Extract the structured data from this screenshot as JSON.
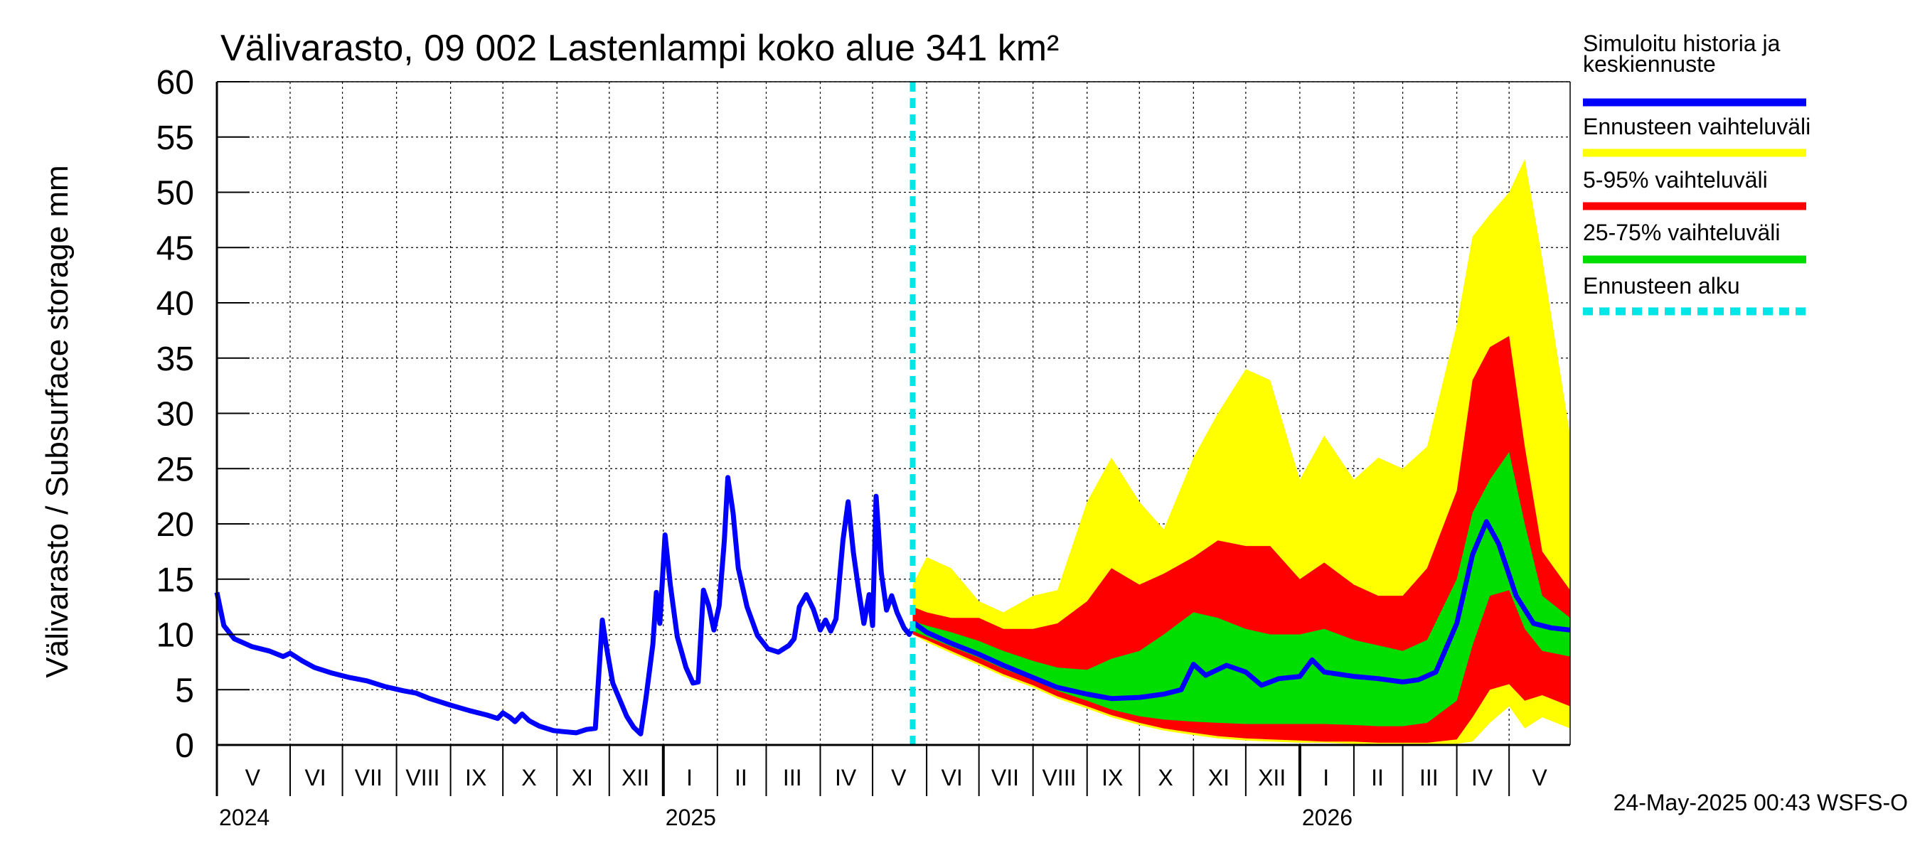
{
  "chart_data": {
    "type": "area",
    "title": "Välivarasto, 09 002 Lastenlampi koko alue 341 km²",
    "ylabel": "Välivarasto / Subsurface storage  mm",
    "xlabel": "",
    "ylim": [
      0,
      60
    ],
    "y_ticks": [
      "0",
      "5",
      "10",
      "15",
      "20",
      "25",
      "30",
      "35",
      "40",
      "45",
      "50",
      "55",
      "60"
    ],
    "grid": true,
    "legend_position": "right",
    "x_start": "2024-04-20",
    "x_end": "2026-06-05",
    "forecast_start": "2025-05-24",
    "months": [
      {
        "label": "V",
        "start": "2024-04-20",
        "end": "2024-05-31"
      },
      {
        "label": "VI",
        "start": "2024-06-01",
        "end": "2024-06-30"
      },
      {
        "label": "VII",
        "start": "2024-07-01",
        "end": "2024-07-31"
      },
      {
        "label": "VIII",
        "start": "2024-08-01",
        "end": "2024-08-31"
      },
      {
        "label": "IX",
        "start": "2024-09-01",
        "end": "2024-09-30"
      },
      {
        "label": "X",
        "start": "2024-10-01",
        "end": "2024-10-31"
      },
      {
        "label": "XI",
        "start": "2024-11-01",
        "end": "2024-11-30"
      },
      {
        "label": "XII",
        "start": "2024-12-01",
        "end": "2024-12-31"
      },
      {
        "label": "I",
        "start": "2025-01-01",
        "end": "2025-01-31"
      },
      {
        "label": "II",
        "start": "2025-02-01",
        "end": "2025-02-28"
      },
      {
        "label": "III",
        "start": "2025-03-01",
        "end": "2025-03-31"
      },
      {
        "label": "IV",
        "start": "2025-04-01",
        "end": "2025-04-30"
      },
      {
        "label": "V",
        "start": "2025-05-01",
        "end": "2025-05-31"
      },
      {
        "label": "VI",
        "start": "2025-06-01",
        "end": "2025-06-30"
      },
      {
        "label": "VII",
        "start": "2025-07-01",
        "end": "2025-07-31"
      },
      {
        "label": "VIII",
        "start": "2025-08-01",
        "end": "2025-08-31"
      },
      {
        "label": "IX",
        "start": "2025-09-01",
        "end": "2025-09-30"
      },
      {
        "label": "X",
        "start": "2025-10-01",
        "end": "2025-10-31"
      },
      {
        "label": "XI",
        "start": "2025-11-01",
        "end": "2025-11-30"
      },
      {
        "label": "XII",
        "start": "2025-12-01",
        "end": "2025-12-31"
      },
      {
        "label": "I",
        "start": "2026-01-01",
        "end": "2026-01-31"
      },
      {
        "label": "II",
        "start": "2026-02-01",
        "end": "2026-02-28"
      },
      {
        "label": "III",
        "start": "2026-03-01",
        "end": "2026-03-31"
      },
      {
        "label": "IV",
        "start": "2026-04-01",
        "end": "2026-04-30"
      },
      {
        "label": "V",
        "start": "2026-05-01",
        "end": "2026-06-05"
      }
    ],
    "years": [
      {
        "label": "2024",
        "date": "2024-04-20"
      },
      {
        "label": "2025",
        "date": "2025-01-01"
      },
      {
        "label": "2026",
        "date": "2026-01-01"
      }
    ],
    "series": [
      {
        "name": "Simuloitu historia ja keskiennuste",
        "color": "#0000ff",
        "points": [
          [
            "2024-04-20",
            13.8
          ],
          [
            "2024-04-24",
            10.8
          ],
          [
            "2024-04-30",
            9.6
          ],
          [
            "2024-05-10",
            8.9
          ],
          [
            "2024-05-20",
            8.5
          ],
          [
            "2024-05-28",
            8.0
          ],
          [
            "2024-06-01",
            8.3
          ],
          [
            "2024-06-08",
            7.6
          ],
          [
            "2024-06-15",
            7.0
          ],
          [
            "2024-06-25",
            6.5
          ],
          [
            "2024-07-05",
            6.1
          ],
          [
            "2024-07-15",
            5.8
          ],
          [
            "2024-07-25",
            5.3
          ],
          [
            "2024-08-05",
            4.9
          ],
          [
            "2024-08-12",
            4.7
          ],
          [
            "2024-08-20",
            4.2
          ],
          [
            "2024-09-01",
            3.6
          ],
          [
            "2024-09-12",
            3.1
          ],
          [
            "2024-09-22",
            2.7
          ],
          [
            "2024-09-28",
            2.4
          ],
          [
            "2024-10-01",
            2.9
          ],
          [
            "2024-10-05",
            2.5
          ],
          [
            "2024-10-08",
            2.1
          ],
          [
            "2024-10-12",
            2.8
          ],
          [
            "2024-10-16",
            2.2
          ],
          [
            "2024-10-22",
            1.7
          ],
          [
            "2024-10-30",
            1.3
          ],
          [
            "2024-11-05",
            1.2
          ],
          [
            "2024-11-12",
            1.1
          ],
          [
            "2024-11-18",
            1.4
          ],
          [
            "2024-11-23",
            1.5
          ],
          [
            "2024-11-27",
            11.3
          ],
          [
            "2024-11-29",
            9.2
          ],
          [
            "2024-12-03",
            5.6
          ],
          [
            "2024-12-07",
            4.1
          ],
          [
            "2024-12-11",
            2.6
          ],
          [
            "2024-12-15",
            1.6
          ],
          [
            "2024-12-19",
            1.0
          ],
          [
            "2024-12-22",
            4.2
          ],
          [
            "2024-12-26",
            9.1
          ],
          [
            "2024-12-28",
            13.8
          ],
          [
            "2024-12-30",
            11.0
          ],
          [
            "2025-01-02",
            19.0
          ],
          [
            "2025-01-05",
            14.5
          ],
          [
            "2025-01-09",
            9.8
          ],
          [
            "2025-01-14",
            7.0
          ],
          [
            "2025-01-18",
            5.6
          ],
          [
            "2025-01-21",
            5.7
          ],
          [
            "2025-01-24",
            14.0
          ],
          [
            "2025-01-27",
            12.6
          ],
          [
            "2025-01-30",
            10.4
          ],
          [
            "2025-02-02",
            12.6
          ],
          [
            "2025-02-05",
            18.5
          ],
          [
            "2025-02-07",
            24.2
          ],
          [
            "2025-02-10",
            21.0
          ],
          [
            "2025-02-13",
            16.0
          ],
          [
            "2025-02-18",
            12.5
          ],
          [
            "2025-02-24",
            9.9
          ],
          [
            "2025-03-02",
            8.7
          ],
          [
            "2025-03-08",
            8.4
          ],
          [
            "2025-03-14",
            9.0
          ],
          [
            "2025-03-17",
            9.6
          ],
          [
            "2025-03-20",
            12.5
          ],
          [
            "2025-03-24",
            13.6
          ],
          [
            "2025-03-28",
            12.3
          ],
          [
            "2025-04-01",
            10.4
          ],
          [
            "2025-04-04",
            11.3
          ],
          [
            "2025-04-07",
            10.3
          ],
          [
            "2025-04-10",
            11.4
          ],
          [
            "2025-04-14",
            18.5
          ],
          [
            "2025-04-17",
            22.0
          ],
          [
            "2025-04-20",
            17.4
          ],
          [
            "2025-04-23",
            14.0
          ],
          [
            "2025-04-26",
            11.0
          ],
          [
            "2025-04-29",
            13.6
          ],
          [
            "2025-05-01",
            10.8
          ],
          [
            "2025-05-03",
            22.5
          ],
          [
            "2025-05-06",
            15.6
          ],
          [
            "2025-05-09",
            12.2
          ],
          [
            "2025-05-12",
            13.5
          ],
          [
            "2025-05-15",
            12.0
          ],
          [
            "2025-05-19",
            10.6
          ],
          [
            "2025-05-22",
            10.0
          ],
          [
            "2025-05-25",
            11.0
          ],
          [
            "2025-06-01",
            10.2
          ],
          [
            "2025-06-15",
            9.2
          ],
          [
            "2025-07-01",
            8.2
          ],
          [
            "2025-07-15",
            7.2
          ],
          [
            "2025-08-01",
            6.1
          ],
          [
            "2025-08-15",
            5.2
          ],
          [
            "2025-09-01",
            4.6
          ],
          [
            "2025-09-15",
            4.2
          ],
          [
            "2025-10-01",
            4.3
          ],
          [
            "2025-10-15",
            4.6
          ],
          [
            "2025-10-25",
            5.0
          ],
          [
            "2025-11-01",
            7.3
          ],
          [
            "2025-11-08",
            6.3
          ],
          [
            "2025-11-20",
            7.2
          ],
          [
            "2025-12-01",
            6.6
          ],
          [
            "2025-12-10",
            5.4
          ],
          [
            "2025-12-20",
            6.0
          ],
          [
            "2026-01-01",
            6.2
          ],
          [
            "2026-01-08",
            7.7
          ],
          [
            "2026-01-15",
            6.6
          ],
          [
            "2026-02-01",
            6.2
          ],
          [
            "2026-02-15",
            6.0
          ],
          [
            "2026-03-01",
            5.7
          ],
          [
            "2026-03-10",
            5.9
          ],
          [
            "2026-03-20",
            6.6
          ],
          [
            "2026-04-01",
            11.0
          ],
          [
            "2026-04-10",
            17.2
          ],
          [
            "2026-04-18",
            20.2
          ],
          [
            "2026-04-25",
            18.2
          ],
          [
            "2026-05-05",
            13.5
          ],
          [
            "2026-05-15",
            11.0
          ],
          [
            "2026-05-25",
            10.6
          ],
          [
            "2026-06-05",
            10.4
          ]
        ]
      },
      {
        "name": "Ennusteen vaihteluväli",
        "color": "#ffff00",
        "x": [
          "2025-05-24",
          "2025-06-01",
          "2025-06-15",
          "2025-07-01",
          "2025-07-15",
          "2025-08-01",
          "2025-08-15",
          "2025-09-01",
          "2025-09-15",
          "2025-10-01",
          "2025-10-15",
          "2025-11-01",
          "2025-11-15",
          "2025-12-01",
          "2025-12-15",
          "2026-01-01",
          "2026-01-15",
          "2026-02-01",
          "2026-02-15",
          "2026-03-01",
          "2026-03-15",
          "2026-04-01",
          "2026-04-10",
          "2026-04-20",
          "2026-05-01",
          "2026-05-10",
          "2026-05-20",
          "2026-06-05"
        ],
        "low": [
          10.0,
          9.3,
          8.3,
          7.2,
          6.2,
          5.2,
          4.2,
          3.3,
          2.5,
          1.8,
          1.3,
          0.9,
          0.6,
          0.4,
          0.3,
          0.2,
          0.2,
          0.1,
          0.1,
          0.1,
          0.1,
          0.1,
          0.3,
          2.0,
          3.5,
          1.5,
          2.5,
          1.5
        ],
        "high": [
          14.5,
          17.0,
          16.0,
          13.0,
          12.0,
          13.5,
          14.0,
          22.0,
          26.0,
          22.0,
          19.5,
          26.0,
          30.0,
          34.0,
          33.0,
          24.0,
          28.0,
          24.0,
          26.0,
          25.0,
          27.0,
          38.0,
          46.0,
          48.0,
          50.0,
          53.0,
          44.0,
          28.0
        ]
      },
      {
        "name": "5-95% vaihteluväli",
        "color": "#ff0000",
        "x": [
          "2025-05-24",
          "2025-06-01",
          "2025-06-15",
          "2025-07-01",
          "2025-07-15",
          "2025-08-01",
          "2025-08-15",
          "2025-09-01",
          "2025-09-15",
          "2025-10-01",
          "2025-10-15",
          "2025-11-01",
          "2025-11-15",
          "2025-12-01",
          "2025-12-15",
          "2026-01-01",
          "2026-01-15",
          "2026-02-01",
          "2026-02-15",
          "2026-03-01",
          "2026-03-15",
          "2026-04-01",
          "2026-04-10",
          "2026-04-20",
          "2026-05-01",
          "2026-05-10",
          "2026-05-20",
          "2026-06-05"
        ],
        "low": [
          10.0,
          9.5,
          8.5,
          7.4,
          6.4,
          5.4,
          4.4,
          3.5,
          2.7,
          2.0,
          1.5,
          1.1,
          0.8,
          0.6,
          0.5,
          0.4,
          0.3,
          0.3,
          0.2,
          0.2,
          0.2,
          0.5,
          2.5,
          5.0,
          5.5,
          4.0,
          4.5,
          3.5
        ],
        "high": [
          12.5,
          12.0,
          11.5,
          11.5,
          10.5,
          10.5,
          11.0,
          13.0,
          16.0,
          14.5,
          15.5,
          17.0,
          18.5,
          18.0,
          18.0,
          15.0,
          16.5,
          14.5,
          13.5,
          13.5,
          16.0,
          23.0,
          33.0,
          36.0,
          37.0,
          27.0,
          17.5,
          14.0
        ]
      },
      {
        "name": "25-75% vaihteluväli",
        "color": "#00dd00",
        "x": [
          "2025-05-24",
          "2025-06-01",
          "2025-06-15",
          "2025-07-01",
          "2025-07-15",
          "2025-08-01",
          "2025-08-15",
          "2025-09-01",
          "2025-09-15",
          "2025-10-01",
          "2025-10-15",
          "2025-11-01",
          "2025-11-15",
          "2025-12-01",
          "2025-12-15",
          "2026-01-01",
          "2026-01-15",
          "2026-02-01",
          "2026-02-15",
          "2026-03-01",
          "2026-03-15",
          "2026-04-01",
          "2026-04-10",
          "2026-04-20",
          "2026-05-01",
          "2026-05-10",
          "2026-05-20",
          "2026-06-05"
        ],
        "low": [
          10.3,
          9.8,
          8.9,
          7.9,
          6.9,
          5.9,
          4.9,
          4.0,
          3.2,
          2.6,
          2.3,
          2.1,
          2.0,
          1.9,
          1.9,
          1.9,
          1.9,
          1.8,
          1.7,
          1.7,
          2.0,
          4.0,
          9.0,
          13.5,
          14.0,
          10.5,
          8.5,
          8.0
        ],
        "high": [
          11.2,
          10.8,
          10.2,
          9.4,
          8.5,
          7.6,
          7.0,
          6.8,
          7.8,
          8.5,
          10.0,
          12.0,
          11.5,
          10.5,
          10.0,
          10.0,
          10.5,
          9.5,
          9.0,
          8.5,
          9.5,
          15.0,
          21.0,
          24.0,
          26.5,
          20.0,
          13.5,
          11.5
        ]
      }
    ],
    "legend": [
      {
        "label": "Simuloitu historia ja keskiennuste",
        "color": "#0000ff",
        "style": "solid"
      },
      {
        "label": "Ennusteen vaihteluväli",
        "color": "#ffff00",
        "style": "solid"
      },
      {
        "label": "5-95% vaihteluväli",
        "color": "#ff0000",
        "style": "solid"
      },
      {
        "label": "25-75% vaihteluväli",
        "color": "#00dd00",
        "style": "solid"
      },
      {
        "label": "Ennusteen alku",
        "color": "#00e5e5",
        "style": "dashed"
      }
    ],
    "footer": "24-May-2025 00:43 WSFS-O"
  }
}
